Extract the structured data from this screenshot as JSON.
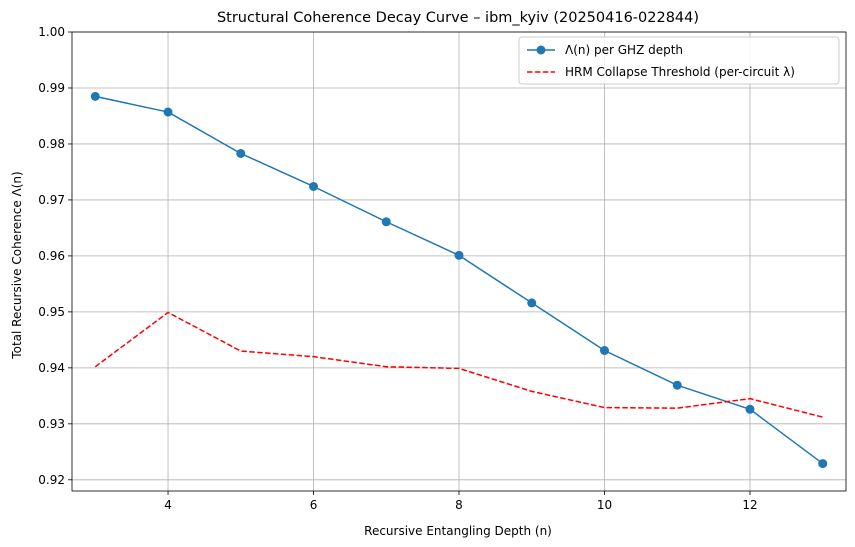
{
  "chart_data": {
    "type": "line",
    "title": "Structural Coherence Decay Curve – ibm_kyiv (20250416-022844)",
    "xlabel": "Recursive Entangling Depth (n)",
    "ylabel": "Total Recursive Coherence Λ(n)",
    "xlim": [
      2.68,
      13.32
    ],
    "ylim": [
      0.918,
      1.0
    ],
    "xticks": [
      4,
      6,
      8,
      10,
      12
    ],
    "xtick_labels": [
      "4",
      "6",
      "8",
      "10",
      "12"
    ],
    "yticks": [
      0.92,
      0.93,
      0.94,
      0.95,
      0.96,
      0.97,
      0.98,
      0.99,
      1.0
    ],
    "ytick_labels": [
      "0.92",
      "0.93",
      "0.94",
      "0.95",
      "0.96",
      "0.97",
      "0.98",
      "0.99",
      "1.00"
    ],
    "grid": true,
    "legend_position": "top-right",
    "x": [
      3,
      4,
      5,
      6,
      7,
      8,
      9,
      10,
      11,
      12,
      13
    ],
    "series": [
      {
        "name": "Λ(n) per GHZ depth",
        "color": "#1f77b4",
        "line_style": "solid",
        "marker": "circle",
        "values": [
          0.9885,
          0.9857,
          0.9783,
          0.9724,
          0.9661,
          0.9601,
          0.9516,
          0.9431,
          0.9369,
          0.9326,
          0.9229
        ]
      },
      {
        "name": "HRM Collapse Threshold (per-circuit λ)",
        "color": "#ff0000",
        "line_style": "dashed",
        "marker": "none",
        "values": [
          0.9402,
          0.9499,
          0.943,
          0.942,
          0.9402,
          0.9399,
          0.9358,
          0.9329,
          0.9328,
          0.9345,
          0.9312
        ]
      }
    ]
  }
}
